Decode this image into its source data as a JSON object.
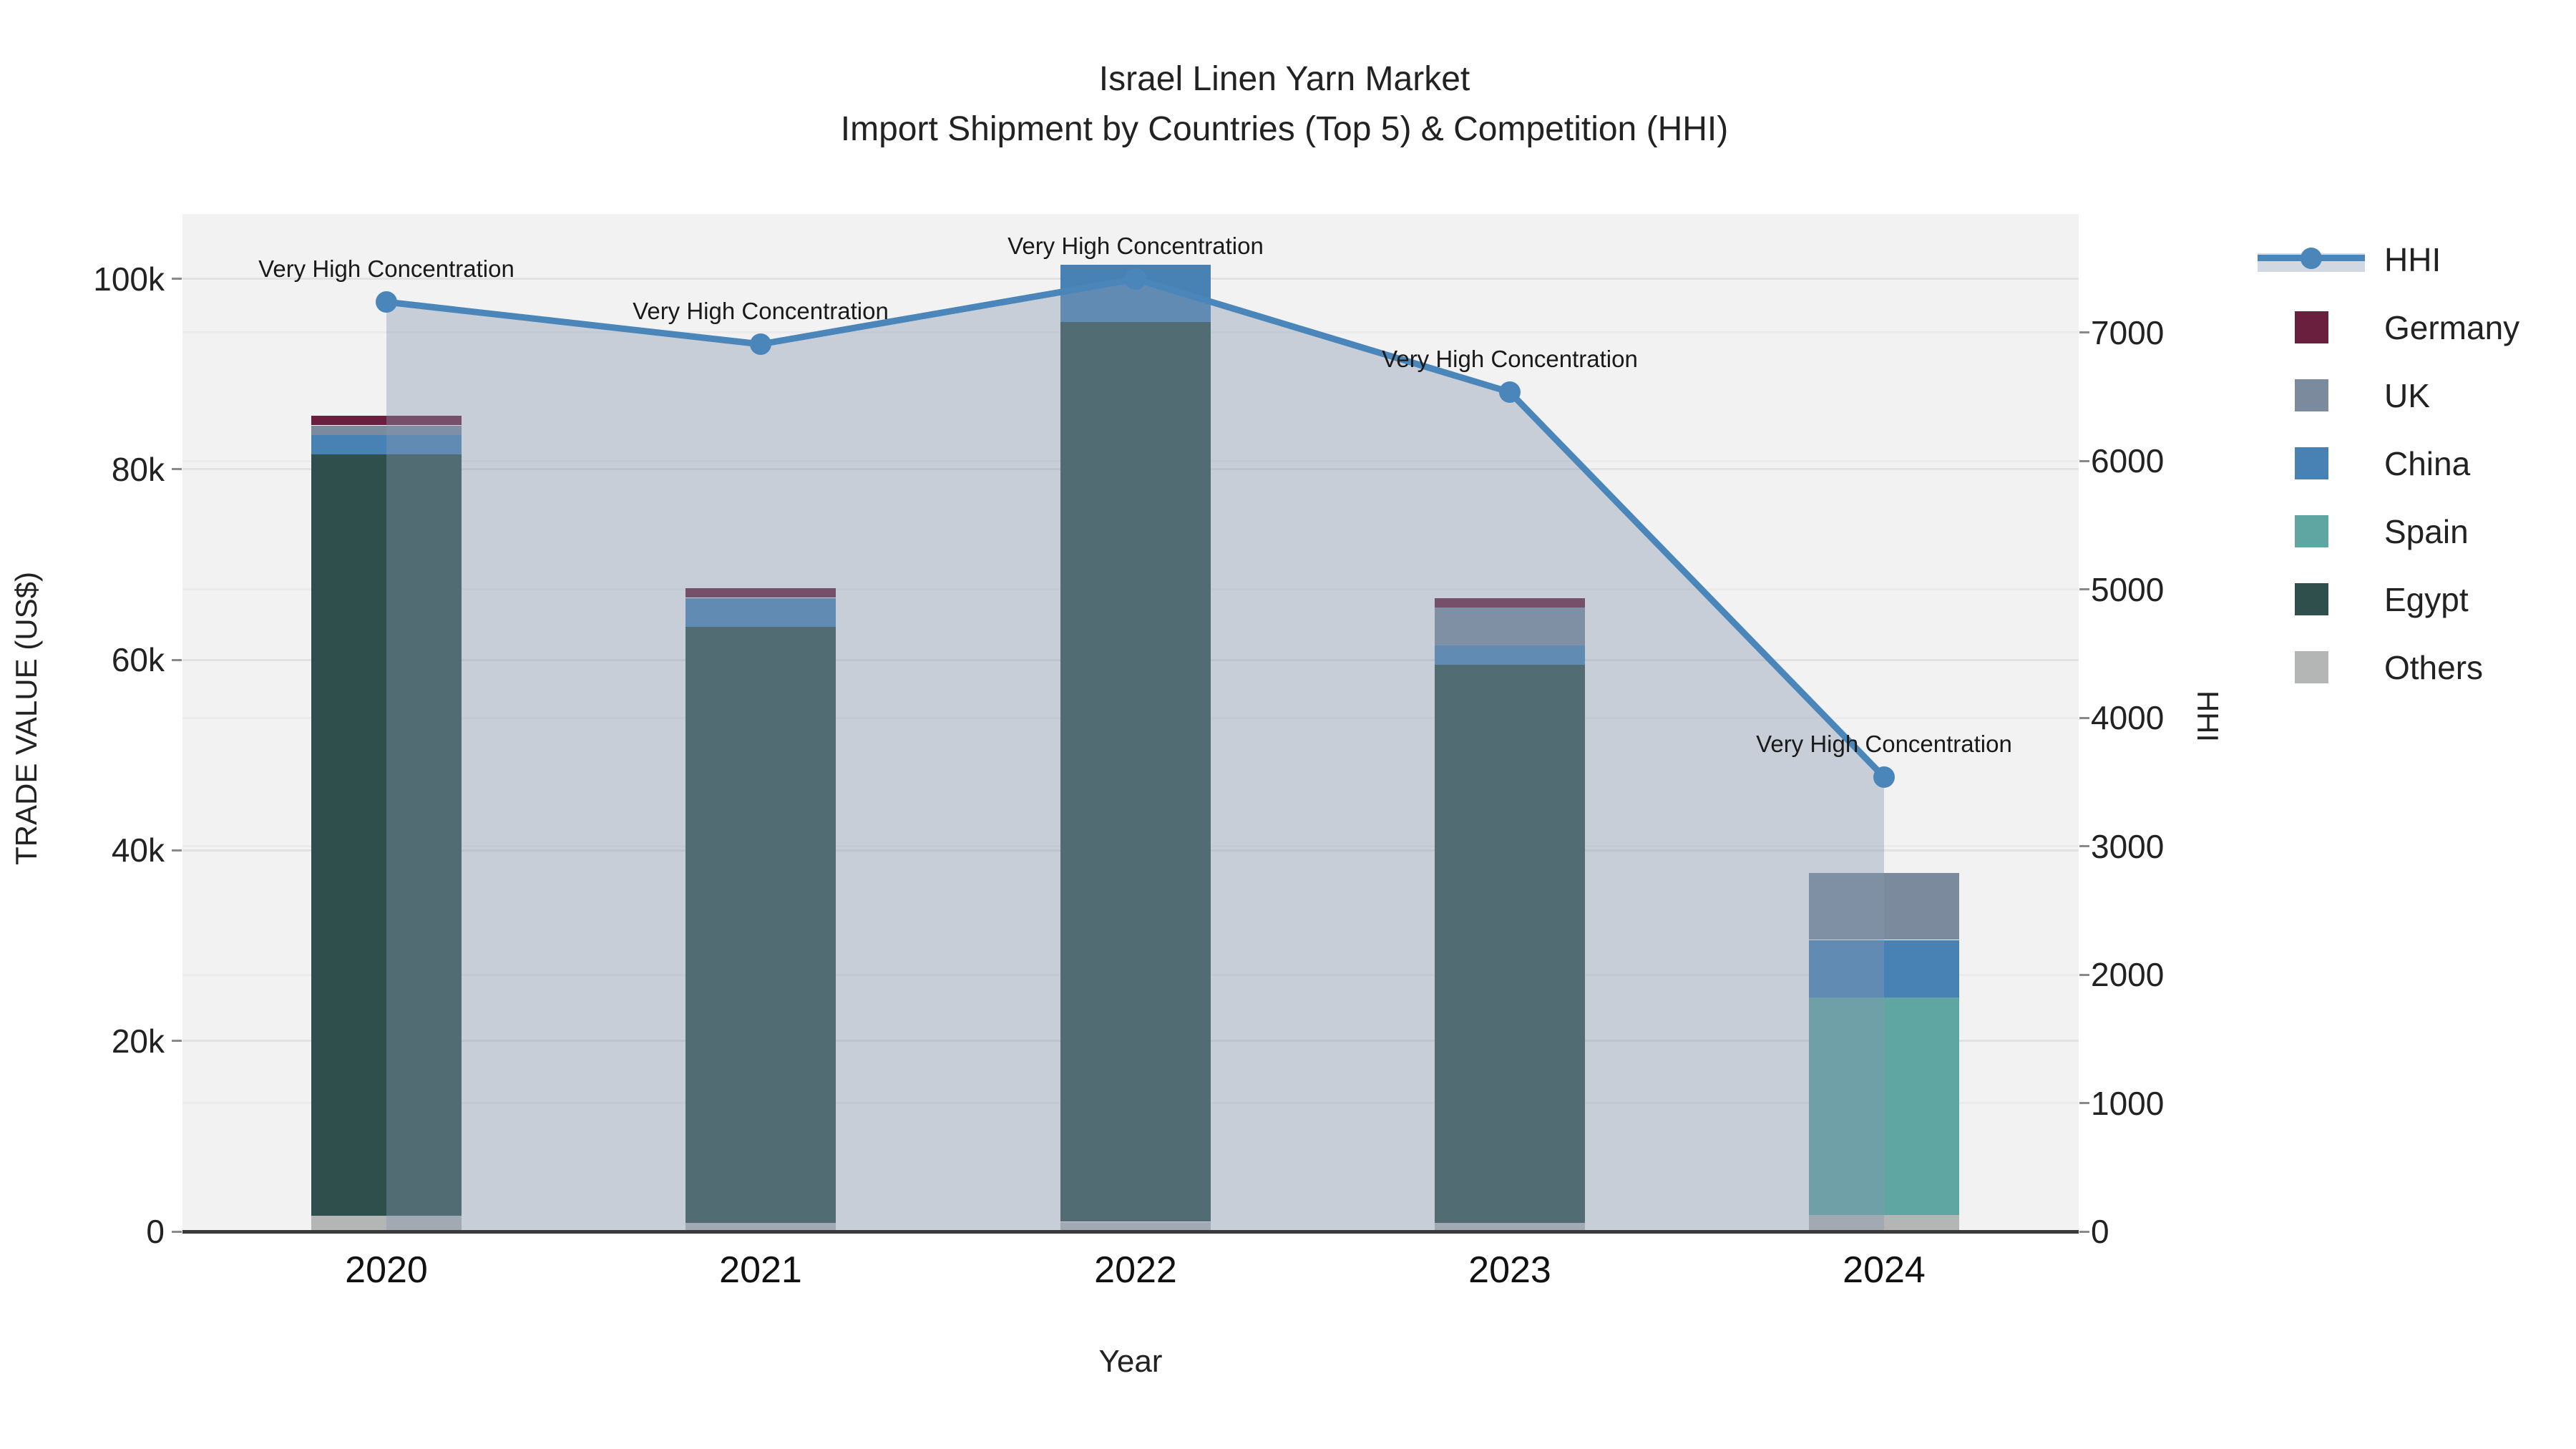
{
  "title": {
    "line1": "Israel Linen Yarn Market",
    "line2": "Import Shipment by Countries (Top 5) & Competition (HHI)"
  },
  "axes": {
    "x_title": "Year",
    "y1_title": "TRADE VALUE (US$)",
    "y2_title": "HHI",
    "y1_tick_labels": [
      "0",
      "20k",
      "40k",
      "60k",
      "80k",
      "100k"
    ],
    "y1_tick_values": [
      0,
      20000,
      40000,
      60000,
      80000,
      100000
    ],
    "y2_tick_labels": [
      "0",
      "1000",
      "2000",
      "3000",
      "4000",
      "5000",
      "6000",
      "7000"
    ],
    "y2_tick_values": [
      0,
      1000,
      2000,
      3000,
      4000,
      5000,
      6000,
      7000
    ]
  },
  "annotation_text": "Very High Concentration",
  "colors": {
    "hhi_line": "#4a86ba",
    "hhi_fill": "rgba(135,152,175,0.40)",
    "germany": "#6b1f3e",
    "uk": "#7b8b9d",
    "china": "#4882b4",
    "spain": "#5fa6a3",
    "egypt": "#2f4f4c",
    "others": "#b3b6b5",
    "plot_bg": "#f2f2f2"
  },
  "legend": [
    {
      "label": "HHI",
      "type": "line",
      "color": "#4a86ba"
    },
    {
      "label": "Germany",
      "type": "square",
      "color": "#6b1f3e"
    },
    {
      "label": "UK",
      "type": "square",
      "color": "#7b8b9d"
    },
    {
      "label": "China",
      "type": "square",
      "color": "#4882b4"
    },
    {
      "label": "Spain",
      "type": "square",
      "color": "#5fa6a3"
    },
    {
      "label": "Egypt",
      "type": "square",
      "color": "#2f4f4c"
    },
    {
      "label": "Others",
      "type": "square",
      "color": "#b3b6b5"
    }
  ],
  "chart_data": {
    "type": "bar+line",
    "categories": [
      "2020",
      "2021",
      "2022",
      "2023",
      "2024"
    ],
    "bar_unit": "US$",
    "stack_order_bottom_to_top": [
      "Others",
      "Egypt",
      "Spain",
      "China",
      "UK",
      "Germany"
    ],
    "series": [
      {
        "name": "Others",
        "color": "#b3b6b5",
        "values": [
          1700,
          900,
          1000,
          900,
          1700
        ]
      },
      {
        "name": "Egypt",
        "color": "#2f4f4c",
        "values": [
          79900,
          62600,
          94500,
          58600,
          0
        ]
      },
      {
        "name": "Spain",
        "color": "#5fa6a3",
        "values": [
          0,
          0,
          0,
          0,
          22900
        ]
      },
      {
        "name": "China",
        "color": "#4882b4",
        "values": [
          2000,
          3000,
          6000,
          2000,
          6000
        ]
      },
      {
        "name": "UK",
        "color": "#7b8b9d",
        "values": [
          1000,
          0,
          0,
          4000,
          7000
        ]
      },
      {
        "name": "Germany",
        "color": "#6b1f3e",
        "values": [
          1000,
          1000,
          0,
          1000,
          0
        ]
      }
    ],
    "bar_totals": [
      85600,
      67500,
      101500,
      66500,
      37600
    ],
    "hhi_series": {
      "name": "HHI",
      "values": [
        7240,
        6910,
        7420,
        6540,
        3540
      ],
      "annotations": [
        "Very High Concentration",
        "Very High Concentration",
        "Very High Concentration",
        "Very High Concentration",
        "Very High Concentration"
      ]
    },
    "y1_range": [
      0,
      106800
    ],
    "y2_range": [
      0,
      7925
    ],
    "grid": true,
    "legend_position": "right"
  }
}
